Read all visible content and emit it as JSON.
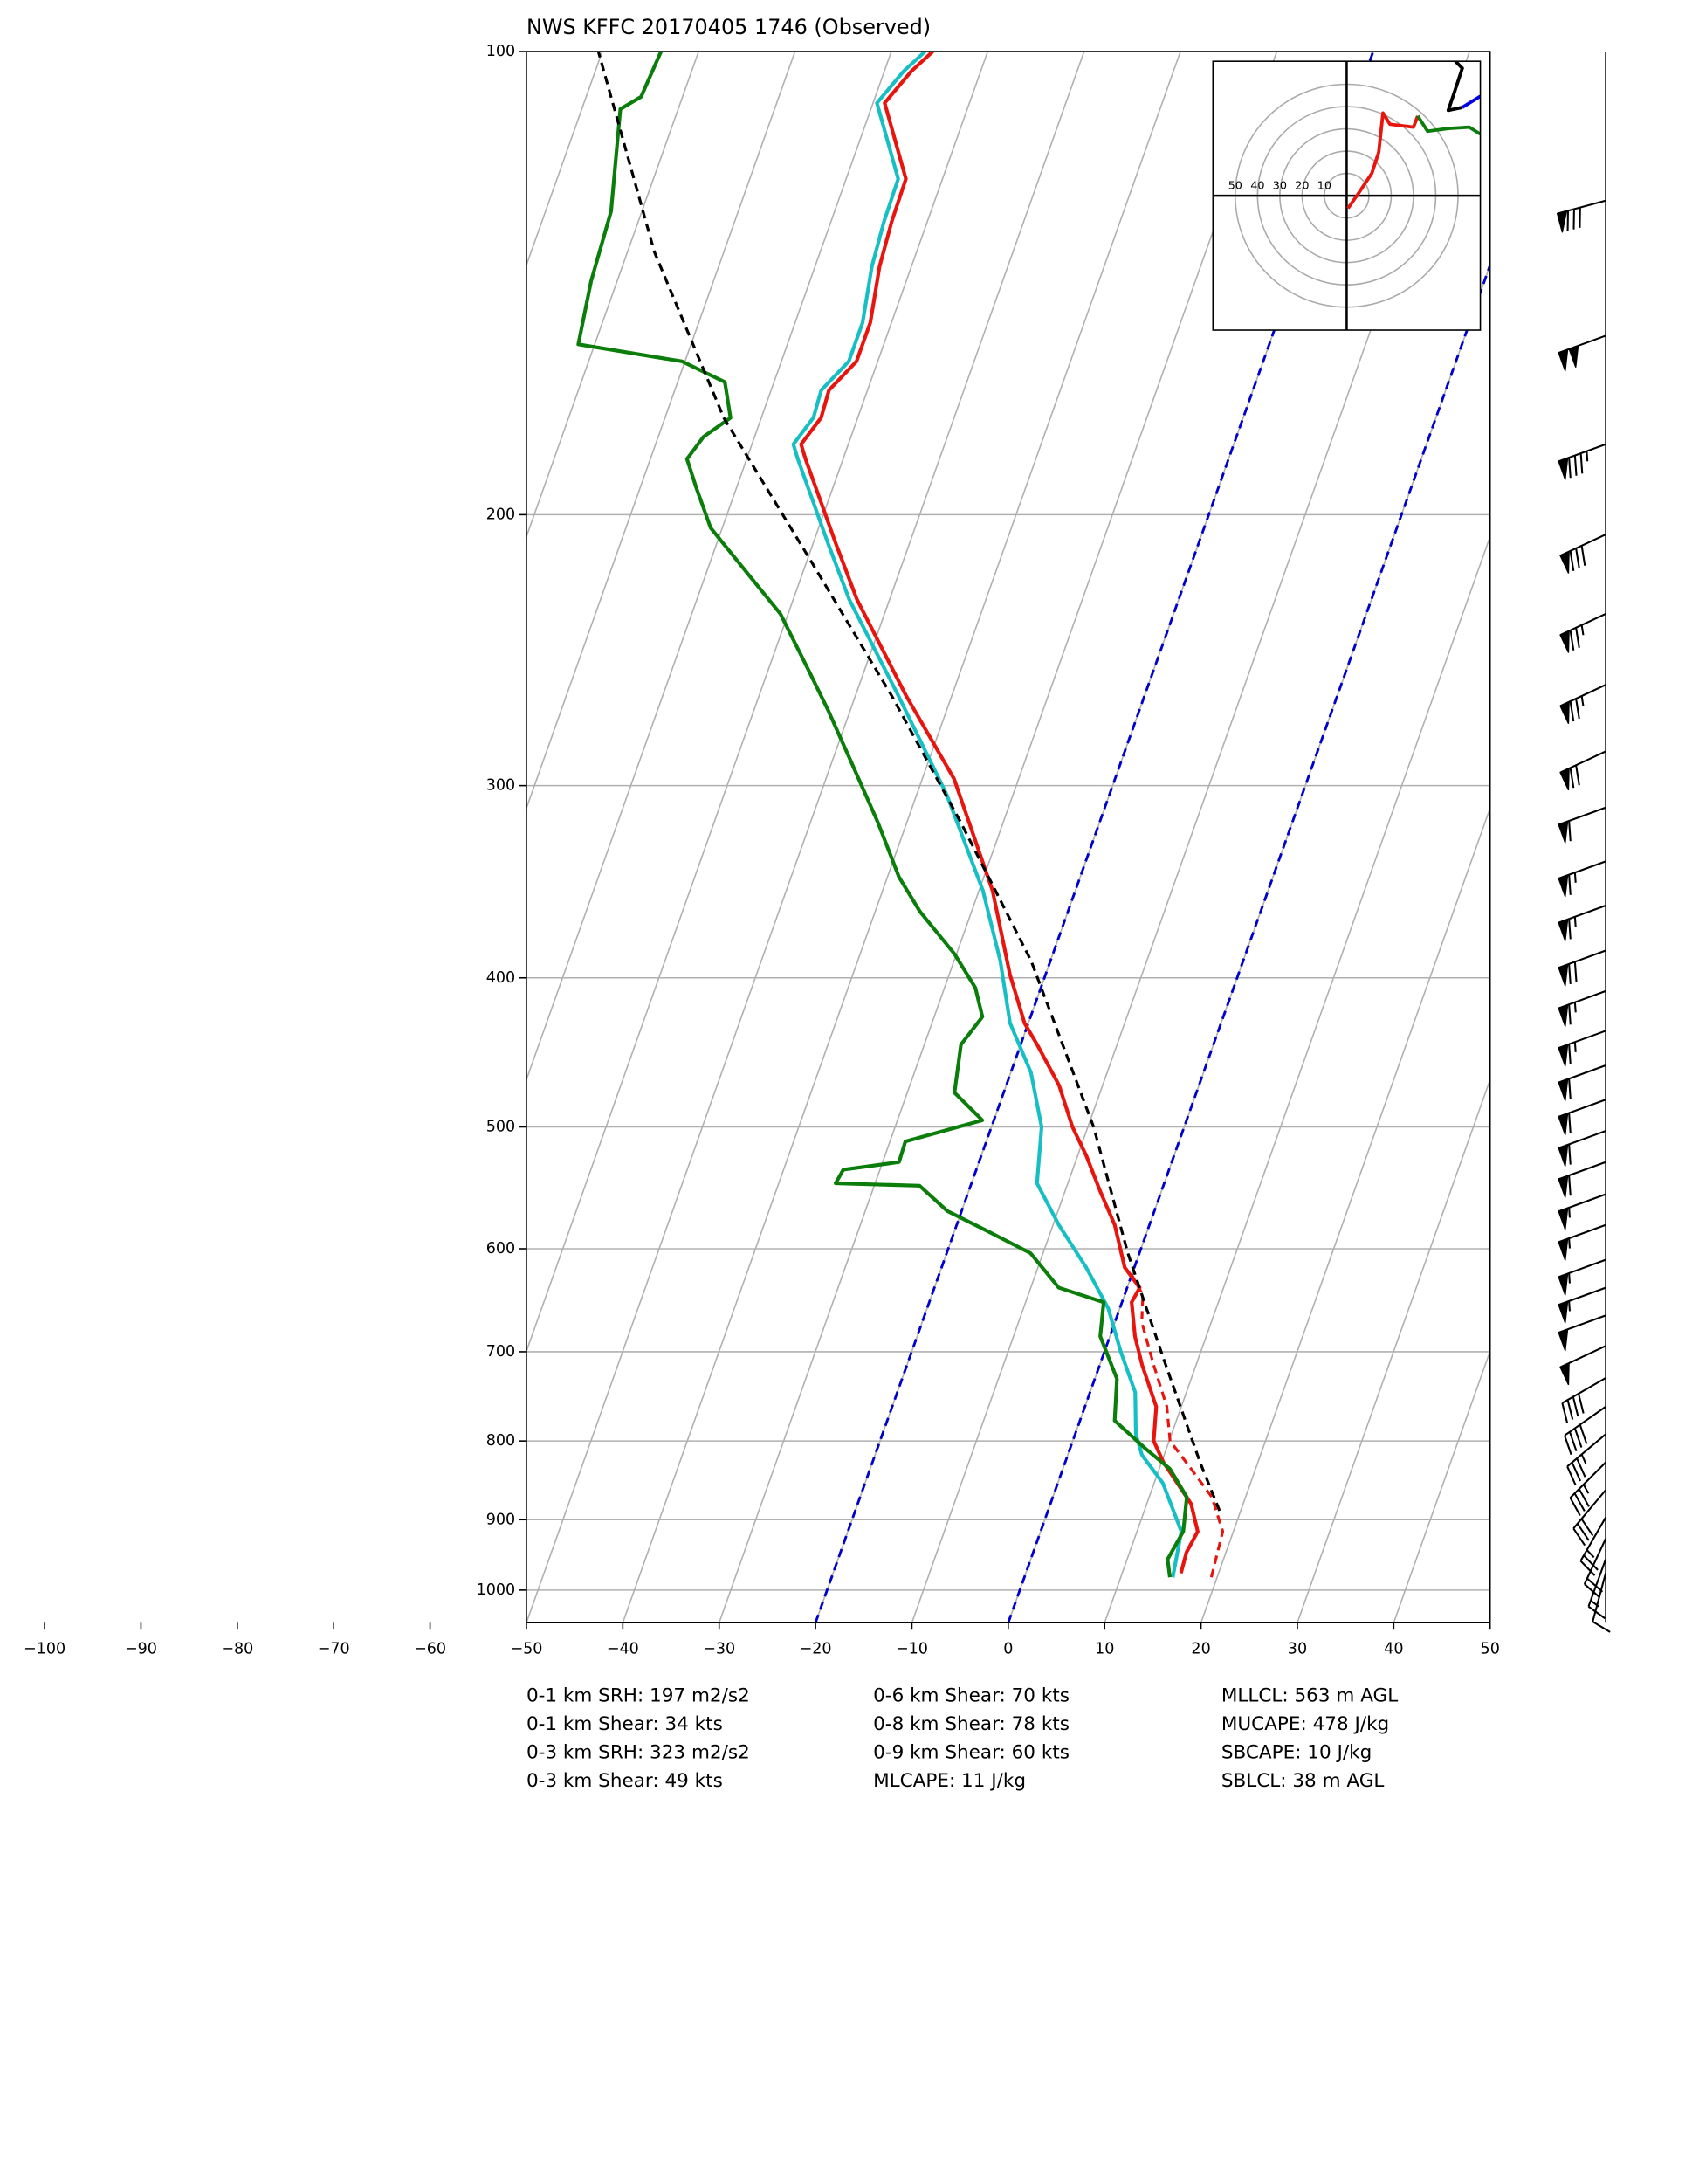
{
  "chart_data": {
    "type": "skewt",
    "title": "NWS KFFC 20170405 1746   (Observed)",
    "xlim": [
      -50,
      50
    ],
    "ylim": [
      1050,
      100
    ],
    "log_y": true,
    "grid": true,
    "xticks": [
      {
        "value": -100,
        "label": "−100"
      },
      {
        "value": -90,
        "label": "−90"
      },
      {
        "value": -80,
        "label": "−80"
      },
      {
        "value": -70,
        "label": "−70"
      },
      {
        "value": -60,
        "label": "−60"
      },
      {
        "value": -50,
        "label": "−50"
      },
      {
        "value": -40,
        "label": "−40"
      },
      {
        "value": -30,
        "label": "−30"
      },
      {
        "value": -20,
        "label": "−20"
      },
      {
        "value": -10,
        "label": "−10"
      },
      0,
      10,
      20,
      30,
      40,
      50
    ],
    "yticks": [
      1000,
      900,
      800,
      700,
      600,
      500,
      400,
      300,
      200,
      100
    ],
    "highlight_isotherms": {
      "values": [
        -20,
        0
      ],
      "color": "#0000cc"
    },
    "profiles": [
      {
        "color": "#e8140e",
        "dashed": false,
        "pressure": [
          975,
          945,
          916,
          879,
          852,
          826,
          800,
          760,
          714,
          684,
          650,
          636,
          617,
          579,
          550,
          522,
          500,
          470,
          442,
          428,
          398,
          351,
          297,
          262,
          227,
          209,
          184,
          180,
          173,
          166,
          159,
          150,
          138,
          129,
          121,
          108,
          103,
          100
        ],
        "temperature": [
          16.1,
          15.9,
          16.3,
          14.6,
          12.4,
          10.2,
          8.4,
          7.4,
          4.4,
          2.6,
          1.0,
          1.3,
          -1.0,
          -3.6,
          -6.4,
          -9.1,
          -11.6,
          -14.5,
          -18.3,
          -20.4,
          -23.7,
          -28.6,
          -36.7,
          -44.8,
          -53.4,
          -57.6,
          -63.9,
          -64.9,
          -63.8,
          -64.0,
          -62.2,
          -62.2,
          -63.3,
          -63.7,
          -63.8,
          -68.8,
          -67.2,
          -65.7
        ]
      },
      {
        "color": "#17bfc4",
        "dashed": false,
        "pressure": [
          981,
          916,
          852,
          817,
          792,
          744,
          700,
          656,
          617,
          579,
          544,
          500,
          461,
          428,
          390,
          351,
          304,
          262,
          227,
          209,
          184,
          180,
          173,
          166,
          159,
          150,
          138,
          129,
          121,
          108,
          103,
          100
        ],
        "temperature": [
          15.4,
          14.6,
          10.9,
          7.7,
          6.3,
          4.7,
          1.7,
          -1.2,
          -5.0,
          -9.4,
          -13.2,
          -14.8,
          -17.9,
          -21.9,
          -25.2,
          -29.6,
          -36.9,
          -45.6,
          -54.2,
          -58.4,
          -64.7,
          -65.7,
          -64.6,
          -64.8,
          -63.0,
          -63.0,
          -64.1,
          -64.5,
          -64.6,
          -69.6,
          -68.0,
          -66.5
        ]
      },
      {
        "color": "#0a7d0a",
        "dashed": false,
        "pressure": [
          981,
          955,
          916,
          870,
          834,
          809,
          776,
          729,
          684,
          650,
          636,
          604,
          585,
          567,
          546,
          544,
          533,
          527,
          511,
          495,
          475,
          442,
          424,
          406,
          386,
          362,
          344,
          317,
          288,
          268,
          252,
          232,
          220,
          204,
          192,
          184,
          178,
          173,
          164,
          159,
          155,
          141,
          127,
          109,
          107,
          100
        ],
        "temperature": [
          15.1,
          14.2,
          14.8,
          13.9,
          11.1,
          7.8,
          3.6,
          2.3,
          -1.0,
          -1.9,
          -7.1,
          -11.3,
          -16.4,
          -21.5,
          -25.3,
          -34.1,
          -33.8,
          -28.3,
          -28.4,
          -21.2,
          -25.1,
          -26.2,
          -25.0,
          -26.8,
          -30.2,
          -35.4,
          -38.8,
          -43.0,
          -48.3,
          -52.3,
          -55.9,
          -60.8,
          -65.1,
          -71.2,
          -74.2,
          -76.2,
          -75.3,
          -73.2,
          -75.1,
          -80.3,
          -91.7,
          -92.7,
          -93.2,
          -96.0,
          -94.3,
          -93.9
        ]
      },
      {
        "color": "#e8140e",
        "dashed": true,
        "pressure": [
          981,
          916,
          870,
          834,
          800,
          760,
          714,
          670,
          643,
          623
        ],
        "temperature": [
          19.4,
          18.9,
          16.5,
          13.3,
          10.1,
          8.5,
          5.6,
          2.8,
          1.9,
          -0.1
        ]
      },
      {
        "color": "#000000",
        "dashed": true,
        "pressure": [
          888,
          826,
          706,
          604,
          500,
          390,
          317,
          262,
          213,
          173,
          135,
          100
        ],
        "temperature": [
          17.8,
          14.0,
          6.3,
          -1.2,
          -9.4,
          -22.0,
          -34.4,
          -46.3,
          -60.0,
          -73.9,
          -87.2,
          -100.4
        ]
      }
    ],
    "wind_barbs": {
      "pressure": [
        125,
        153,
        180,
        206,
        232,
        258,
        285,
        310,
        336,
        359,
        384,
        408,
        433,
        456,
        480,
        503,
        527,
        553,
        579,
        610,
        636,
        663,
        694,
        728,
        760,
        792,
        826,
        861,
        897,
        926,
        955,
        975
      ],
      "speed": [
        80,
        100,
        85,
        80,
        75,
        75,
        70,
        60,
        65,
        65,
        70,
        65,
        65,
        60,
        60,
        60,
        60,
        55,
        55,
        55,
        55,
        50,
        50,
        40,
        40,
        35,
        35,
        30,
        25,
        20,
        15,
        10
      ],
      "direction": [
        255,
        250,
        250,
        245,
        245,
        245,
        245,
        250,
        250,
        250,
        250,
        250,
        250,
        250,
        250,
        250,
        250,
        250,
        250,
        250,
        250,
        250,
        245,
        240,
        235,
        230,
        225,
        220,
        210,
        205,
        200,
        195
      ]
    },
    "hodograph": {
      "xlim": [
        -60,
        60
      ],
      "ylim": [
        -60,
        60
      ],
      "rings": [
        50,
        40,
        30,
        20,
        10
      ],
      "segments": [
        {
          "color": "#e8140e",
          "u": [
            0.6,
            5,
            11.3,
            14.4,
            16.3,
            19.4,
            30,
            31.9
          ],
          "v": [
            -5.6,
            0.6,
            10,
            19.4,
            36.9,
            31.9,
            30.6,
            35.6
          ]
        },
        {
          "color": "#0a7d0a",
          "u": [
            31.9,
            36.3,
            45.6,
            55,
            60
          ],
          "v": [
            35.6,
            28.8,
            30,
            30.6,
            27.5
          ]
        },
        {
          "color": "#0000ee",
          "u": [
            60,
            51.9
          ],
          "v": [
            44.4,
            39.4
          ]
        },
        {
          "color": "#000000",
          "u": [
            51.9,
            45.6,
            48.8,
            51.9,
            48.8
          ],
          "v": [
            39.4,
            38.1,
            47.5,
            56.9,
            60
          ]
        }
      ]
    },
    "stats": [
      [
        "0-1 km SRH: 197 m2/s2",
        "0-1 km Shear: 34 kts",
        "0-3 km SRH: 323 m2/s2",
        "0-3 km Shear: 49 kts"
      ],
      [
        "0-6 km Shear: 70 kts",
        "0-8 km Shear: 78 kts",
        "0-9 km Shear: 60 kts",
        "MLCAPE: 11 J/kg"
      ],
      [
        "MLLCL: 563 m AGL",
        "MUCAPE: 478 J/kg",
        "SBCAPE: 10 J/kg",
        "SBLCL: 38 m AGL"
      ]
    ]
  }
}
